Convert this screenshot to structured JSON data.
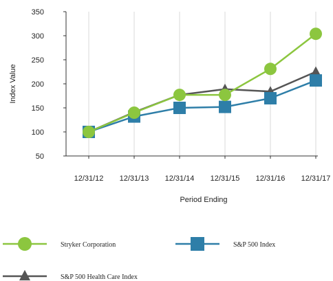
{
  "chart_data": {
    "type": "line",
    "title": "",
    "xlabel": "Period Ending",
    "ylabel": "Index Value",
    "categories": [
      "12/31/12",
      "12/31/13",
      "12/31/14",
      "12/31/15",
      "12/31/16",
      "12/31/17"
    ],
    "ylim": [
      50,
      350
    ],
    "yticks": [
      50,
      100,
      150,
      200,
      250,
      300,
      350
    ],
    "grid": "vertical",
    "legend_position": "bottom",
    "series": [
      {
        "name": "Stryker Corporation",
        "color": "#8cc63f",
        "marker": "circle",
        "values": [
          100,
          140,
          177,
          177,
          231,
          304
        ]
      },
      {
        "name": "S&P 500 Index",
        "color": "#2e7ea8",
        "marker": "square",
        "values": [
          100,
          132,
          150,
          152,
          170,
          207
        ]
      },
      {
        "name": "S&P 500 Health Care Index",
        "color": "#555555",
        "marker": "triangle",
        "values": [
          100,
          141,
          177,
          189,
          184,
          225
        ]
      }
    ]
  }
}
